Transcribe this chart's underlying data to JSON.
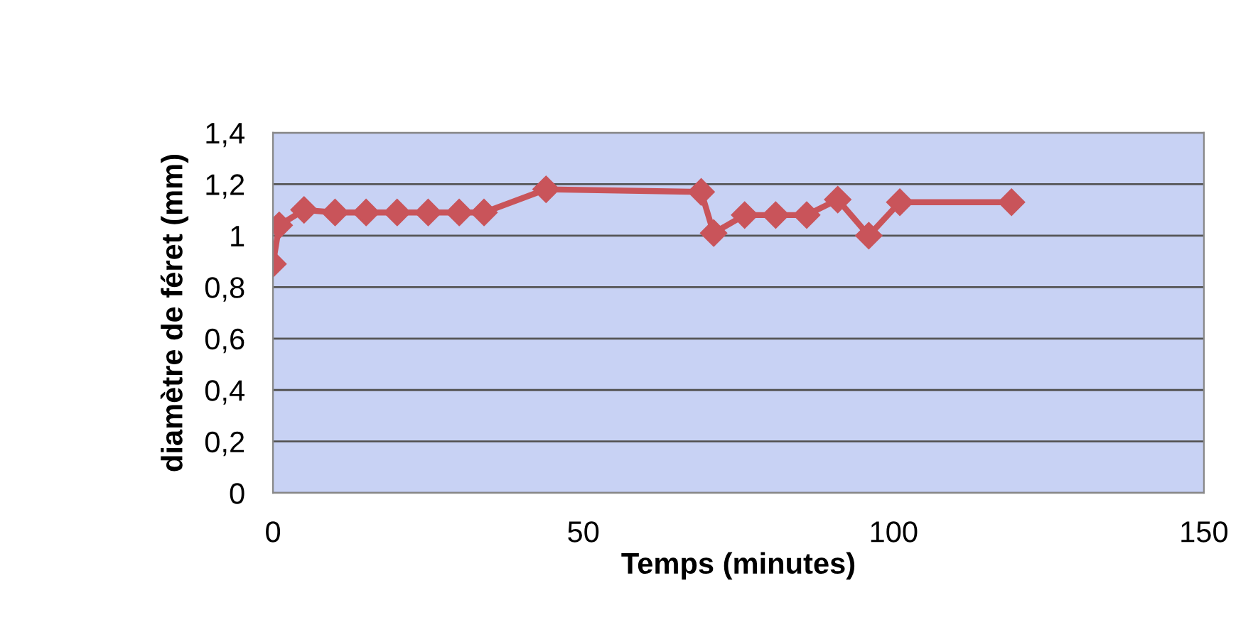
{
  "chart_data": {
    "type": "line",
    "xlabel": "Temps (minutes)",
    "ylabel": "diamètre de féret (mm)",
    "x": [
      0,
      1,
      5,
      10,
      15,
      20,
      25,
      30,
      34,
      44,
      69,
      71,
      76,
      81,
      86,
      91,
      96,
      101,
      119
    ],
    "series": [
      {
        "color": "#c9545a",
        "values": [
          0.89,
          1.04,
          1.1,
          1.09,
          1.09,
          1.09,
          1.09,
          1.09,
          1.09,
          1.18,
          1.17,
          1.01,
          1.08,
          1.08,
          1.08,
          1.14,
          1.0,
          1.13,
          1.13
        ]
      }
    ],
    "xlim": [
      0,
      150
    ],
    "xticks": [
      0,
      50,
      100,
      150
    ],
    "ylim": [
      0,
      1.4
    ],
    "yticks": [
      0,
      {
        "value": 0.2,
        "label": "0,2"
      },
      {
        "value": 0.4,
        "label": "0,4"
      },
      {
        "value": 0.6,
        "label": "0,6"
      },
      {
        "value": 0.8,
        "label": "0,8"
      },
      1,
      {
        "value": 1.2,
        "label": "1,2"
      },
      {
        "value": 1.4,
        "label": "1,4"
      }
    ],
    "grid": "y",
    "marker": "diamond",
    "line_style": "solid",
    "legend": false
  }
}
